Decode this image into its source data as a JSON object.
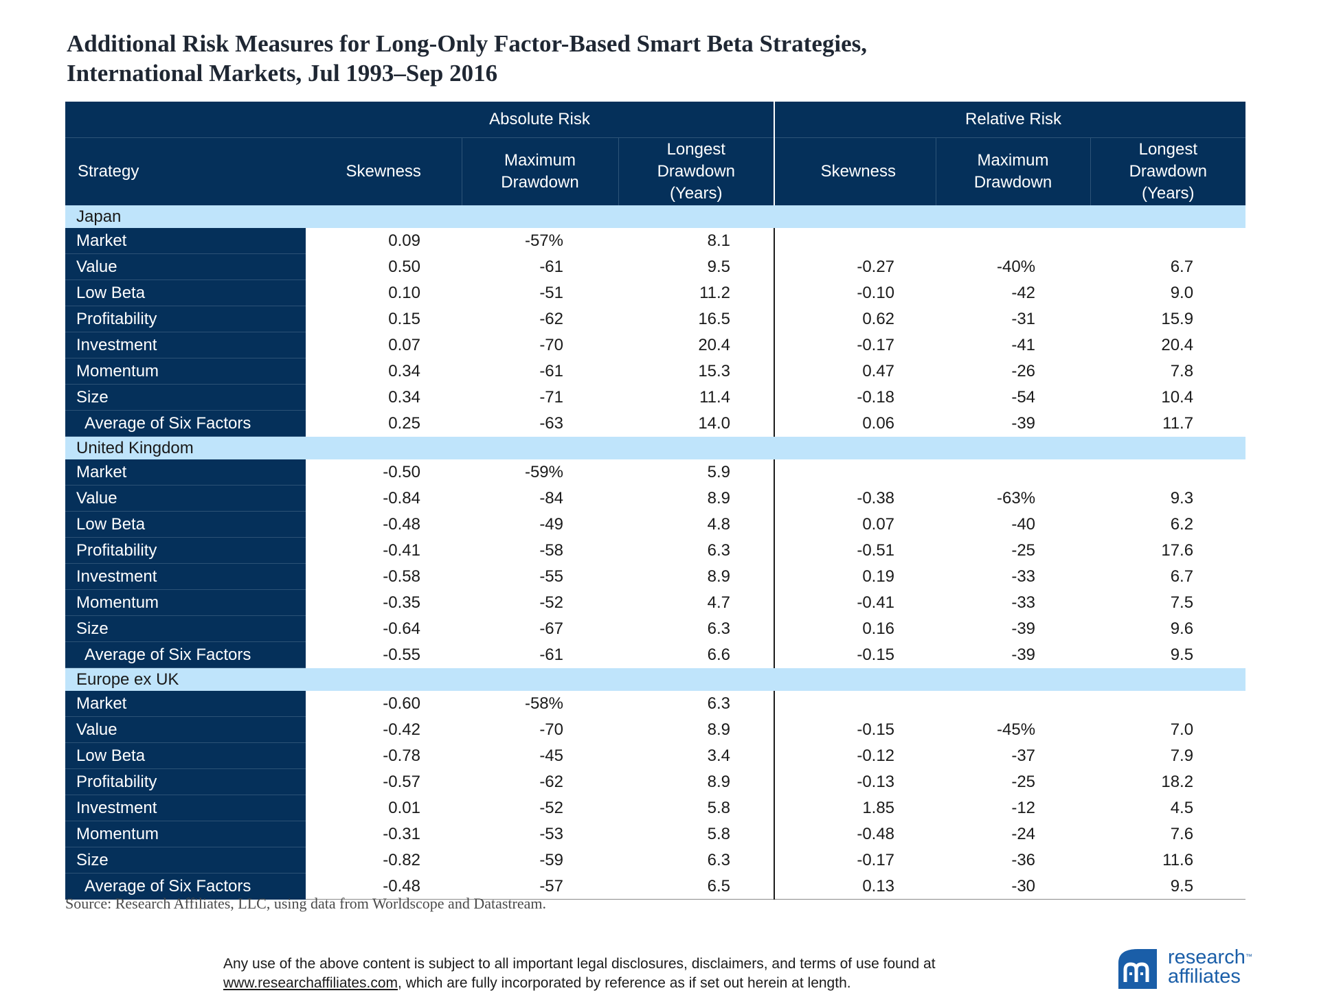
{
  "title_line1": "Additional Risk Measures for Long-Only Factor-Based Smart Beta Strategies,",
  "title_line2": "International Markets, Jul 1993–Sep 2016",
  "header": {
    "group_absolute": "Absolute Risk",
    "group_relative": "Relative Risk",
    "strategy": "Strategy",
    "skewness": "Skewness",
    "max_drawdown_l1": "Maximum",
    "max_drawdown_l2": "Drawdown",
    "longest_l1": "Longest",
    "longest_l2": "Drawdown",
    "longest_l3": "(Years)"
  },
  "sections": [
    {
      "name": "Japan",
      "rows": [
        {
          "strategy": "Market",
          "abs_skew": "0.09",
          "abs_mdd": "-57%",
          "abs_ldd": "8.1",
          "rel_skew": "",
          "rel_mdd": "",
          "rel_ldd": ""
        },
        {
          "strategy": "Value",
          "abs_skew": "0.50",
          "abs_mdd": "-61",
          "abs_ldd": "9.5",
          "rel_skew": "-0.27",
          "rel_mdd": "-40%",
          "rel_ldd": "6.7"
        },
        {
          "strategy": "Low Beta",
          "abs_skew": "0.10",
          "abs_mdd": "-51",
          "abs_ldd": "11.2",
          "rel_skew": "-0.10",
          "rel_mdd": "-42",
          "rel_ldd": "9.0"
        },
        {
          "strategy": "Profitability",
          "abs_skew": "0.15",
          "abs_mdd": "-62",
          "abs_ldd": "16.5",
          "rel_skew": "0.62",
          "rel_mdd": "-31",
          "rel_ldd": "15.9"
        },
        {
          "strategy": "Investment",
          "abs_skew": "0.07",
          "abs_mdd": "-70",
          "abs_ldd": "20.4",
          "rel_skew": "-0.17",
          "rel_mdd": "-41",
          "rel_ldd": "20.4"
        },
        {
          "strategy": "Momentum",
          "abs_skew": "0.34",
          "abs_mdd": "-61",
          "abs_ldd": "15.3",
          "rel_skew": "0.47",
          "rel_mdd": "-26",
          "rel_ldd": "7.8"
        },
        {
          "strategy": "Size",
          "abs_skew": "0.34",
          "abs_mdd": "-71",
          "abs_ldd": "11.4",
          "rel_skew": "-0.18",
          "rel_mdd": "-54",
          "rel_ldd": "10.4"
        },
        {
          "strategy": "Average of Six Factors",
          "abs_skew": "0.25",
          "abs_mdd": "-63",
          "abs_ldd": "14.0",
          "rel_skew": "0.06",
          "rel_mdd": "-39",
          "rel_ldd": "11.7"
        }
      ]
    },
    {
      "name": "United Kingdom",
      "rows": [
        {
          "strategy": "Market",
          "abs_skew": "-0.50",
          "abs_mdd": "-59%",
          "abs_ldd": "5.9",
          "rel_skew": "",
          "rel_mdd": "",
          "rel_ldd": ""
        },
        {
          "strategy": "Value",
          "abs_skew": "-0.84",
          "abs_mdd": "-84",
          "abs_ldd": "8.9",
          "rel_skew": "-0.38",
          "rel_mdd": "-63%",
          "rel_ldd": "9.3"
        },
        {
          "strategy": "Low Beta",
          "abs_skew": "-0.48",
          "abs_mdd": "-49",
          "abs_ldd": "4.8",
          "rel_skew": "0.07",
          "rel_mdd": "-40",
          "rel_ldd": "6.2"
        },
        {
          "strategy": "Profitability",
          "abs_skew": "-0.41",
          "abs_mdd": "-58",
          "abs_ldd": "6.3",
          "rel_skew": "-0.51",
          "rel_mdd": "-25",
          "rel_ldd": "17.6"
        },
        {
          "strategy": "Investment",
          "abs_skew": "-0.58",
          "abs_mdd": "-55",
          "abs_ldd": "8.9",
          "rel_skew": "0.19",
          "rel_mdd": "-33",
          "rel_ldd": "6.7"
        },
        {
          "strategy": "Momentum",
          "abs_skew": "-0.35",
          "abs_mdd": "-52",
          "abs_ldd": "4.7",
          "rel_skew": "-0.41",
          "rel_mdd": "-33",
          "rel_ldd": "7.5"
        },
        {
          "strategy": "Size",
          "abs_skew": "-0.64",
          "abs_mdd": "-67",
          "abs_ldd": "6.3",
          "rel_skew": "0.16",
          "rel_mdd": "-39",
          "rel_ldd": "9.6"
        },
        {
          "strategy": "Average of Six Factors",
          "abs_skew": "-0.55",
          "abs_mdd": "-61",
          "abs_ldd": "6.6",
          "rel_skew": "-0.15",
          "rel_mdd": "-39",
          "rel_ldd": "9.5"
        }
      ]
    },
    {
      "name": "Europe ex UK",
      "rows": [
        {
          "strategy": "Market",
          "abs_skew": "-0.60",
          "abs_mdd": "-58%",
          "abs_ldd": "6.3",
          "rel_skew": "",
          "rel_mdd": "",
          "rel_ldd": ""
        },
        {
          "strategy": "Value",
          "abs_skew": "-0.42",
          "abs_mdd": "-70",
          "abs_ldd": "8.9",
          "rel_skew": "-0.15",
          "rel_mdd": "-45%",
          "rel_ldd": "7.0"
        },
        {
          "strategy": "Low Beta",
          "abs_skew": "-0.78",
          "abs_mdd": "-45",
          "abs_ldd": "3.4",
          "rel_skew": "-0.12",
          "rel_mdd": "-37",
          "rel_ldd": "7.9"
        },
        {
          "strategy": "Profitability",
          "abs_skew": "-0.57",
          "abs_mdd": "-62",
          "abs_ldd": "8.9",
          "rel_skew": "-0.13",
          "rel_mdd": "-25",
          "rel_ldd": "18.2"
        },
        {
          "strategy": "Investment",
          "abs_skew": "0.01",
          "abs_mdd": "-52",
          "abs_ldd": "5.8",
          "rel_skew": "1.85",
          "rel_mdd": "-12",
          "rel_ldd": "4.5"
        },
        {
          "strategy": "Momentum",
          "abs_skew": "-0.31",
          "abs_mdd": "-53",
          "abs_ldd": "5.8",
          "rel_skew": "-0.48",
          "rel_mdd": "-24",
          "rel_ldd": "7.6"
        },
        {
          "strategy": "Size",
          "abs_skew": "-0.82",
          "abs_mdd": "-59",
          "abs_ldd": "6.3",
          "rel_skew": "-0.17",
          "rel_mdd": "-36",
          "rel_ldd": "11.6"
        },
        {
          "strategy": "Average of Six Factors",
          "abs_skew": "-0.48",
          "abs_mdd": "-57",
          "abs_ldd": "6.5",
          "rel_skew": "0.13",
          "rel_mdd": "-30",
          "rel_ldd": "9.5"
        }
      ]
    }
  ],
  "source": "Source: Research Affiliates, LLC, using data from Worldscope and Datastream.",
  "disclaimer_line1": "Any use of the above content is subject to all important legal disclosures, disclaimers, and terms of use found at",
  "disclaimer_link": "www.researchaffiliates.com",
  "disclaimer_line2_rest": ", which are fully incorporated by reference as if set out herein at length.",
  "logo": {
    "line1": "research",
    "tm": "™",
    "line2": "affiliates",
    "icon": "research-affiliates-logo-icon",
    "brand_color": "#1a5ea8"
  },
  "colors": {
    "header_navy": "#05305a",
    "section_blue": "#bfe4fb"
  }
}
